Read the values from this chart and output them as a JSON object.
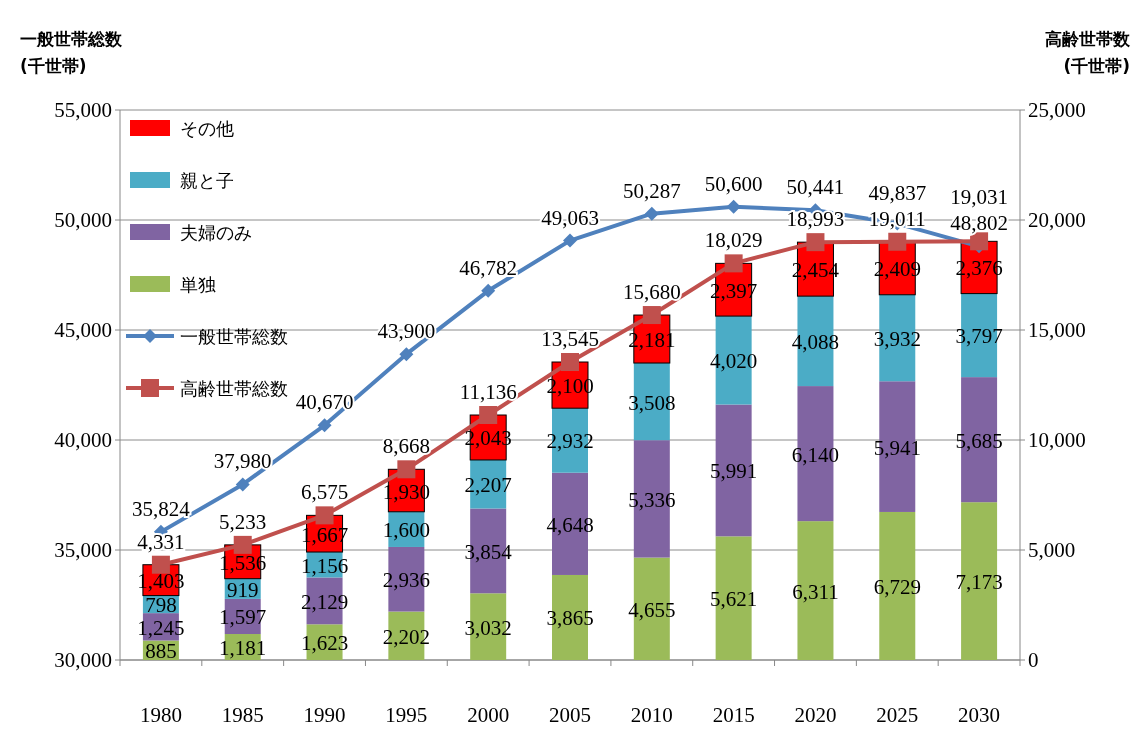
{
  "chart_data": {
    "type": "bar",
    "stacked": true,
    "ylabel": "一般世帯総数 (千世帯)",
    "y2label": "高齢世帯数 (千世帯)",
    "categories": [
      "1980",
      "1985",
      "1990",
      "1995",
      "2000",
      "2005",
      "2010",
      "2015",
      "2020",
      "2025",
      "2030"
    ],
    "ylim": [
      30000,
      55000
    ],
    "yticks": [
      {
        "value": 30000,
        "label": "30,000"
      },
      {
        "value": 35000,
        "label": "35,000"
      },
      {
        "value": 40000,
        "label": "40,000"
      },
      {
        "value": 45000,
        "label": "45,000"
      },
      {
        "value": 50000,
        "label": "50,000"
      },
      {
        "value": 55000,
        "label": "55,000"
      }
    ],
    "y2lim": [
      0,
      25000
    ],
    "y2ticks": [
      0,
      {
        "value": 5000,
        "label": "5,000"
      },
      {
        "value": 10000,
        "label": "10,000"
      },
      {
        "value": 15000,
        "label": "15,000"
      },
      {
        "value": 20000,
        "label": "20,000"
      },
      {
        "value": 25000,
        "label": "25,000"
      }
    ],
    "grid": "y",
    "legend": "top left",
    "series": [
      {
        "name": "単独",
        "color": "#9bbb59",
        "axis": "y2",
        "values": [
          885,
          1181,
          1623,
          2202,
          3032,
          3865,
          4655,
          5621,
          6311,
          6729,
          7173
        ],
        "value_labels": [
          "885",
          "1,181",
          "1,623",
          "2,202",
          "3,032",
          "3,865",
          "4,655",
          "5,621",
          "6,311",
          "6,729",
          "7,173"
        ]
      },
      {
        "name": "夫婦のみ",
        "color": "#8064a2",
        "axis": "y2",
        "values": [
          1245,
          1597,
          2129,
          2936,
          3854,
          4648,
          5336,
          5991,
          6140,
          5941,
          5685
        ],
        "value_labels": [
          "1,245",
          "1,597",
          "2,129",
          "2,936",
          "3,854",
          "4,648",
          "5,336",
          "5,991",
          "6,140",
          "5,941",
          "5,685"
        ]
      },
      {
        "name": "親と子",
        "color": "#4bacc6",
        "axis": "y2",
        "values": [
          798,
          919,
          1156,
          1600,
          2207,
          2932,
          3508,
          4020,
          4088,
          3932,
          3797
        ],
        "value_labels": [
          "798",
          "919",
          "1,156",
          "1,600",
          "2,207",
          "2,932",
          "3,508",
          "4,020",
          "4,088",
          "3,932",
          "3,797"
        ]
      },
      {
        "name": "その他",
        "color": "#ff0000",
        "axis": "y2",
        "values": [
          1403,
          1536,
          1667,
          1930,
          2043,
          2100,
          2181,
          2397,
          2454,
          2409,
          2376
        ],
        "value_labels": [
          "1,403",
          "1,536",
          "1,667",
          "1,930",
          "2,043",
          "2,100",
          "2,181",
          "2,397",
          "2,454",
          "2,409",
          "2,376"
        ]
      },
      {
        "name": "一般世帯総数",
        "type": "line",
        "color": "#4f81bd",
        "marker": "diamond",
        "values": [
          35824,
          37980,
          40670,
          43900,
          46782,
          49063,
          50287,
          50600,
          50441,
          49837,
          48802
        ],
        "value_labels": [
          "35,824",
          "37,980",
          "40,670",
          "43,900",
          "46,782",
          "49,063",
          "50,287",
          "50,600",
          "50,441",
          "49,837",
          "48,802"
        ]
      },
      {
        "name": "高齢世帯総数",
        "type": "line",
        "axis": "y2",
        "color": "#c0504d",
        "marker": "square",
        "values": [
          4331,
          5233,
          6575,
          8668,
          11136,
          13545,
          15680,
          18029,
          18993,
          19011,
          19031
        ],
        "value_labels": [
          "4,331",
          "5,233",
          "6,575",
          "8,668",
          "11,136",
          "13,545",
          "15,680",
          "18,029",
          "18,993",
          "19,011",
          "19,031"
        ]
      }
    ]
  }
}
